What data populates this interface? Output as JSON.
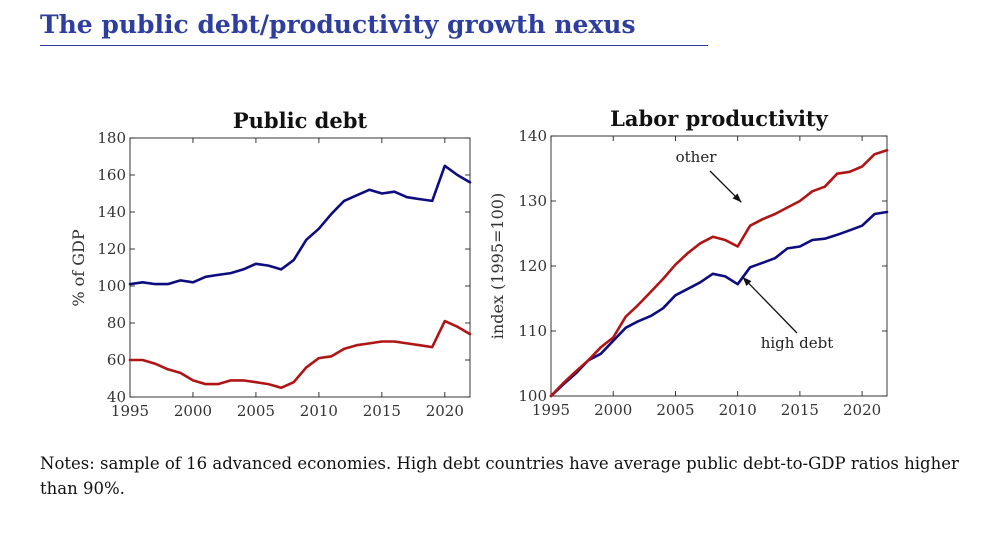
{
  "slide": {
    "title": "The public debt/productivity growth nexus",
    "notes": "Notes: sample of 16 advanced economies. High debt countries have average public debt-to-GDP ratios higher than 90%."
  },
  "colors": {
    "title": "#2e3e9e",
    "high_debt": "#0d0d80",
    "other": "#b01515"
  },
  "chart_data": [
    {
      "type": "line",
      "title": "Public debt",
      "xlabel": "",
      "ylabel": "% of GDP",
      "xlim": [
        1995,
        2022
      ],
      "ylim": [
        40,
        180
      ],
      "xticks": [
        1995,
        2000,
        2005,
        2010,
        2015,
        2020
      ],
      "yticks": [
        40,
        60,
        80,
        100,
        120,
        140,
        160,
        180
      ],
      "grid": false,
      "x": [
        1995,
        1996,
        1997,
        1998,
        1999,
        2000,
        2001,
        2002,
        2003,
        2004,
        2005,
        2006,
        2007,
        2008,
        2009,
        2010,
        2011,
        2012,
        2013,
        2014,
        2015,
        2016,
        2017,
        2018,
        2019,
        2020,
        2021,
        2022
      ],
      "series": [
        {
          "name": "high debt",
          "color": "#0d0d80",
          "values": [
            101,
            102,
            101,
            101,
            103,
            102,
            105,
            106,
            107,
            109,
            112,
            111,
            109,
            114,
            125,
            131,
            139,
            146,
            149,
            152,
            150,
            151,
            148,
            147,
            146,
            165,
            160,
            156
          ]
        },
        {
          "name": "other",
          "color": "#b01515",
          "values": [
            60,
            60,
            58,
            55,
            53,
            49,
            47,
            47,
            49,
            49,
            48,
            47,
            45,
            48,
            56,
            61,
            62,
            66,
            68,
            69,
            70,
            70,
            69,
            68,
            67,
            81,
            78,
            74
          ]
        }
      ],
      "annotations": []
    },
    {
      "type": "line",
      "title": "Labor productivity",
      "xlabel": "",
      "ylabel": "index (1995=100)",
      "xlim": [
        1995,
        2022
      ],
      "ylim": [
        100,
        140
      ],
      "xticks": [
        1995,
        2000,
        2005,
        2010,
        2015,
        2020
      ],
      "yticks": [
        100,
        110,
        120,
        130,
        140
      ],
      "grid": false,
      "x": [
        1995,
        1996,
        1997,
        1998,
        1999,
        2000,
        2001,
        2002,
        2003,
        2004,
        2005,
        2006,
        2007,
        2008,
        2009,
        2010,
        2011,
        2012,
        2013,
        2014,
        2015,
        2016,
        2017,
        2018,
        2019,
        2020,
        2021,
        2022
      ],
      "series": [
        {
          "name": "high debt",
          "color": "#0d0d80",
          "values": [
            100,
            101.8,
            103.5,
            105.5,
            106.5,
            108.5,
            110.5,
            111.5,
            112.3,
            113.5,
            115.5,
            116.5,
            117.5,
            118.8,
            118.4,
            117.2,
            119.8,
            120.5,
            121.2,
            122.7,
            123,
            124,
            124.2,
            124.8,
            125.5,
            126.2,
            128,
            128.3
          ]
        },
        {
          "name": "other",
          "color": "#b01515",
          "values": [
            100,
            102,
            103.8,
            105.5,
            107.5,
            109,
            112.2,
            114,
            116,
            118,
            120.2,
            122,
            123.5,
            124.5,
            124,
            123,
            126.2,
            127.2,
            128,
            129,
            130,
            131.5,
            132.2,
            134.2,
            134.5,
            135.3,
            137.2,
            137.8
          ]
        }
      ],
      "annotations": [
        {
          "text": "other",
          "target": [
            2010.3,
            129.8
          ]
        },
        {
          "text": "high debt",
          "target": [
            2010.4,
            118.3
          ]
        }
      ]
    }
  ]
}
